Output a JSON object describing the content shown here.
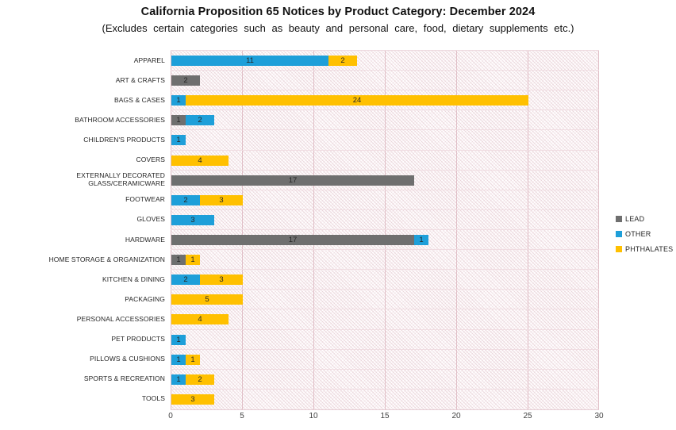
{
  "title": "California Proposition 65 Notices by Product Category: December 2024",
  "subtitle": "(Excludes certain categories such as beauty and personal care, food, dietary supplements etc.)",
  "colors": {
    "LEAD": "#6F6F6F",
    "OTHER": "#1E9FD9",
    "PHTHALATES": "#FFC000"
  },
  "legend": {
    "position": "right",
    "entries": [
      {
        "label": "LEAD",
        "color": "#6F6F6F"
      },
      {
        "label": "OTHER",
        "color": "#1E9FD9"
      },
      {
        "label": "PHTHALATES",
        "color": "#FFC000"
      }
    ]
  },
  "chart_data": {
    "type": "bar",
    "orientation": "horizontal",
    "stacked": true,
    "grid": true,
    "title": "California Proposition 65 Notices by Product Category: December 2024",
    "subtitle": "(Excludes certain categories such as beauty and personal care, food, dietary supplements etc.)",
    "xlabel": "",
    "ylabel": "",
    "xlim": [
      0,
      30
    ],
    "x_ticks": [
      0,
      5,
      10,
      15,
      20,
      25,
      30
    ],
    "categories": [
      "APPAREL",
      "ART & CRAFTS",
      "BAGS & CASES",
      "BATHROOM ACCESSORIES",
      "CHILDREN'S PRODUCTS",
      "COVERS",
      "EXTERNALLY DECORATED GLASS/CERAMICWARE",
      "FOOTWEAR",
      "GLOVES",
      "HARDWARE",
      "HOME STORAGE & ORGANIZATION",
      "KITCHEN & DINING",
      "PACKAGING",
      "PERSONAL ACCESSORIES",
      "PET PRODUCTS",
      "PILLOWS & CUSHIONS",
      "SPORTS & RECREATION",
      "TOOLS"
    ],
    "series": [
      {
        "name": "LEAD",
        "color": "#6F6F6F",
        "values": [
          0,
          2,
          0,
          1,
          0,
          0,
          17,
          0,
          0,
          17,
          1,
          0,
          0,
          0,
          0,
          0,
          0,
          0
        ]
      },
      {
        "name": "OTHER",
        "color": "#1E9FD9",
        "values": [
          11,
          0,
          1,
          2,
          1,
          0,
          0,
          2,
          3,
          1,
          0,
          2,
          0,
          0,
          1,
          1,
          1,
          0
        ]
      },
      {
        "name": "PHTHALATES",
        "color": "#FFC000",
        "values": [
          2,
          0,
          24,
          0,
          0,
          4,
          0,
          3,
          0,
          0,
          1,
          3,
          5,
          4,
          0,
          1,
          2,
          3
        ]
      }
    ],
    "data_labels": "shown on every segment, dark text centered"
  }
}
